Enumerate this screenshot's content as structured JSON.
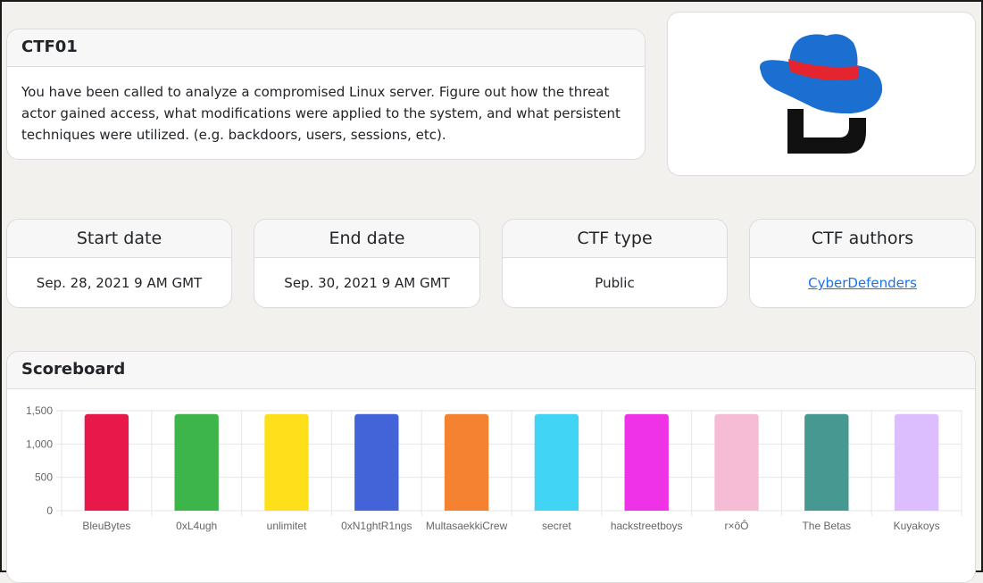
{
  "description": {
    "title": "CTF01",
    "text": "You have been called to analyze a compromised Linux server. Figure out how the threat actor gained access, what modifications were applied to the system, and what persistent techniques were utilized. (e.g. backdoors, users, sessions, etc)."
  },
  "logo": {
    "icon": "cyberdefenders-hat-logo",
    "colors": {
      "hat": "#1a6fd0",
      "band": "#e4252f",
      "letter": "#111111"
    }
  },
  "info": {
    "start": {
      "label": "Start date",
      "value": "Sep. 28, 2021 9 AM GMT"
    },
    "end": {
      "label": "End date",
      "value": "Sep. 30, 2021 9 AM GMT"
    },
    "type": {
      "label": "CTF type",
      "value": "Public"
    },
    "authors": {
      "label": "CTF authors",
      "value": "CyberDefenders"
    }
  },
  "scoreboard": {
    "title": "Scoreboard"
  },
  "chart_data": {
    "type": "bar",
    "categories": [
      "BleuBytes",
      "0xL4ugh",
      "unlimitet",
      "0xN1ghtR1ngs",
      "MultasaekkiCrew",
      "secret",
      "hackstreetboys",
      "r×ôÔ",
      "The Betas",
      "Kuyakoys"
    ],
    "values": [
      1450,
      1450,
      1450,
      1450,
      1450,
      1450,
      1450,
      1450,
      1450,
      1450
    ],
    "colors": [
      "#e8194a",
      "#3db54a",
      "#fde01a",
      "#4363d8",
      "#f58231",
      "#42d4f4",
      "#f032e6",
      "#f7bcd5",
      "#469990",
      "#dcbeff"
    ],
    "ylim": [
      0,
      1500
    ],
    "yticks": [
      0,
      500,
      1000,
      1500
    ],
    "ytick_labels": [
      "0",
      "500",
      "1,000",
      "1,500"
    ],
    "grid": true,
    "title": "",
    "xlabel": "",
    "ylabel": ""
  }
}
